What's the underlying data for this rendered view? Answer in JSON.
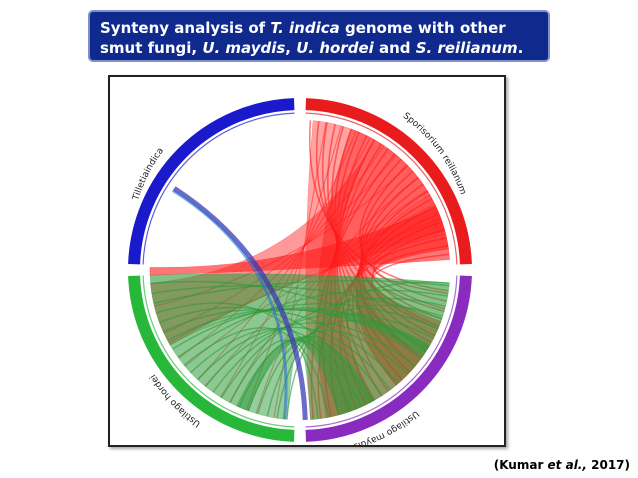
{
  "title": {
    "part1": "Synteny analysis of ",
    "species": "T. indica",
    "part2": " genome with other smut fungi, ",
    "sp1": "U. maydis",
    "sep1": ", ",
    "sp2": "U. hordei",
    "sep2": " and ",
    "sp3": "S. reilianum",
    "end": "."
  },
  "citation": {
    "open": "(Kumar ",
    "etal": "et al.,",
    "year": " 2017)"
  },
  "genomes": [
    {
      "label": "Tilletiaindica",
      "color": "#1a1acc"
    },
    {
      "label": "Sporisorium reilianum",
      "color": "#e81c1c"
    },
    {
      "label": "Ustilago maydis",
      "color": "#8a2bc0"
    },
    {
      "label": "Ustilago hordei",
      "color": "#27b83a"
    }
  ],
  "colors": {
    "banner": "#0f2a8c",
    "red_links": "#ff1a1a",
    "green_links": "#2f9a3a",
    "blue_link": "#3a3ab5"
  }
}
